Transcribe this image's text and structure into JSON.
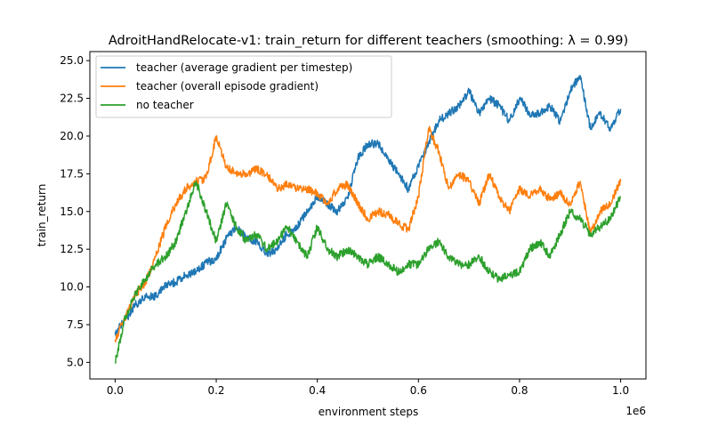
{
  "chart_data": {
    "type": "line",
    "title": "AdroitHandRelocate-v1: train_return for different teachers (smoothing: λ = 0.99)",
    "xlabel": "environment steps",
    "ylabel": "train_return",
    "x_offset_text": "1e6",
    "xlim": [
      -50000,
      1050000
    ],
    "ylim": [
      3.9,
      25.6
    ],
    "x_ticks": [
      0,
      200000,
      400000,
      600000,
      800000,
      1000000
    ],
    "x_tick_labels": [
      "0.0",
      "0.2",
      "0.4",
      "0.6",
      "0.8",
      "1.0"
    ],
    "y_ticks": [
      5.0,
      7.5,
      10.0,
      12.5,
      15.0,
      17.5,
      20.0,
      22.5,
      25.0
    ],
    "y_tick_labels": [
      "5.0",
      "7.5",
      "10.0",
      "12.5",
      "15.0",
      "17.5",
      "20.0",
      "22.5",
      "25.0"
    ],
    "legend_position": "top-left",
    "grid": false,
    "series": [
      {
        "name": "teacher (average gradient per timestep)",
        "color": "#1f77b4",
        "x": [
          0,
          20000,
          40000,
          60000,
          80000,
          100000,
          120000,
          140000,
          160000,
          180000,
          200000,
          220000,
          240000,
          260000,
          280000,
          300000,
          320000,
          340000,
          360000,
          380000,
          400000,
          420000,
          440000,
          460000,
          480000,
          500000,
          520000,
          540000,
          560000,
          580000,
          600000,
          620000,
          640000,
          660000,
          680000,
          700000,
          720000,
          740000,
          760000,
          780000,
          800000,
          820000,
          840000,
          860000,
          880000,
          900000,
          920000,
          940000,
          960000,
          980000,
          1000000
        ],
        "values": [
          7.0,
          7.8,
          8.8,
          9.3,
          9.4,
          10.2,
          10.3,
          10.8,
          11.0,
          11.6,
          11.9,
          13.2,
          14.0,
          13.3,
          13.0,
          12.2,
          12.5,
          13.5,
          14.0,
          15.0,
          16.0,
          15.5,
          15.0,
          16.0,
          18.5,
          19.5,
          19.5,
          18.5,
          17.5,
          16.5,
          18.0,
          19.5,
          21.0,
          21.5,
          22.0,
          23.0,
          21.5,
          22.5,
          22.0,
          21.0,
          22.5,
          21.5,
          21.5,
          22.0,
          21.0,
          23.0,
          24.0,
          20.5,
          21.5,
          20.5,
          21.8
        ]
      },
      {
        "name": "teacher (overall episode gradient)",
        "color": "#ff7f0e",
        "x": [
          0,
          20000,
          40000,
          60000,
          80000,
          100000,
          120000,
          140000,
          160000,
          180000,
          200000,
          220000,
          240000,
          260000,
          280000,
          300000,
          320000,
          340000,
          360000,
          380000,
          400000,
          420000,
          440000,
          460000,
          480000,
          500000,
          520000,
          540000,
          560000,
          580000,
          600000,
          620000,
          640000,
          660000,
          680000,
          700000,
          720000,
          740000,
          760000,
          780000,
          800000,
          820000,
          840000,
          860000,
          880000,
          900000,
          920000,
          940000,
          960000,
          980000,
          1000000
        ],
        "values": [
          6.5,
          8.0,
          9.5,
          10.3,
          12.0,
          14.0,
          15.5,
          16.5,
          17.0,
          17.2,
          20.0,
          18.0,
          17.5,
          17.5,
          17.8,
          17.5,
          16.5,
          16.8,
          16.5,
          16.5,
          16.2,
          15.5,
          16.5,
          16.8,
          15.5,
          14.5,
          15.0,
          14.8,
          14.2,
          13.8,
          16.0,
          20.5,
          19.0,
          16.5,
          17.5,
          17.0,
          15.5,
          17.5,
          16.0,
          15.0,
          16.5,
          16.0,
          16.5,
          15.8,
          16.2,
          15.5,
          17.0,
          13.5,
          15.0,
          15.5,
          17.0
        ]
      },
      {
        "name": "no teacher",
        "color": "#2ca02c",
        "x": [
          0,
          20000,
          40000,
          60000,
          80000,
          100000,
          120000,
          140000,
          160000,
          180000,
          200000,
          220000,
          240000,
          260000,
          280000,
          300000,
          320000,
          340000,
          360000,
          380000,
          400000,
          420000,
          440000,
          460000,
          480000,
          500000,
          520000,
          540000,
          560000,
          580000,
          600000,
          620000,
          640000,
          660000,
          680000,
          700000,
          720000,
          740000,
          760000,
          780000,
          800000,
          820000,
          840000,
          860000,
          880000,
          900000,
          920000,
          940000,
          960000,
          980000,
          1000000
        ],
        "values": [
          5.0,
          8.0,
          9.5,
          10.5,
          11.5,
          12.0,
          13.0,
          15.0,
          17.0,
          15.0,
          13.0,
          15.5,
          14.0,
          13.0,
          13.5,
          12.5,
          13.0,
          14.0,
          13.0,
          12.0,
          14.0,
          12.5,
          12.0,
          12.5,
          12.0,
          11.5,
          12.0,
          11.5,
          11.0,
          11.5,
          11.5,
          12.5,
          13.0,
          12.0,
          11.5,
          11.5,
          12.0,
          11.0,
          10.5,
          10.8,
          11.0,
          12.5,
          13.0,
          12.0,
          13.5,
          15.0,
          14.5,
          13.5,
          14.0,
          14.5,
          16.0
        ]
      }
    ]
  }
}
